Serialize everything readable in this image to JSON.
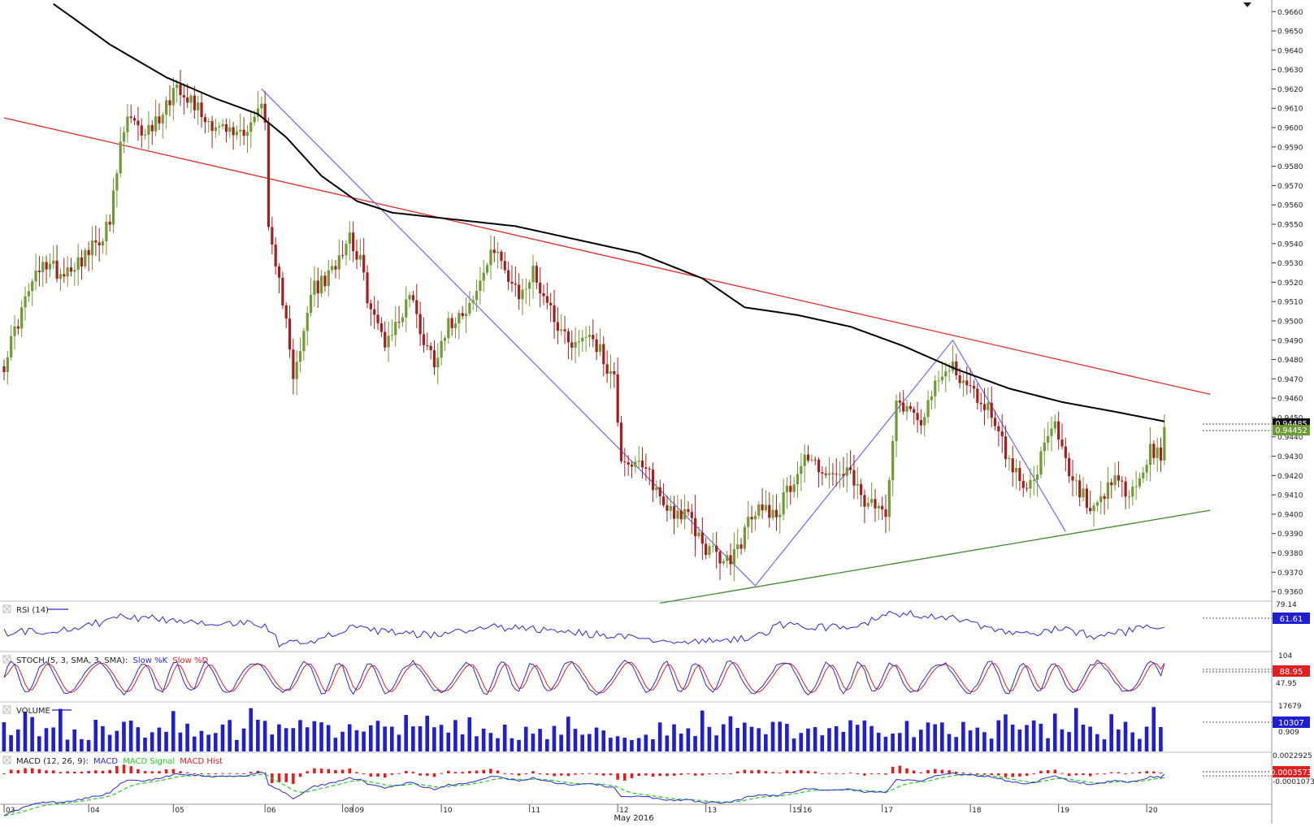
{
  "chart_data": {
    "type": "candlestick",
    "colors": {
      "bull": "#6f9a34",
      "bear": "#a02020",
      "ma": "#000000",
      "resistance": "#e32b2b",
      "support": "#3d8a2a",
      "zigzag": "#6a6aff",
      "rsi": "#2a2ad8",
      "stoch_k": "#2a2ad8",
      "stoch_d": "#e02020",
      "volume": "#1f1fd0",
      "macd": "#2a2ad8",
      "macd_signal": "#22cc22",
      "macd_hist": "#e02020"
    },
    "price_axis": {
      "ymin": 0.9355,
      "ymax": 0.9666,
      "ticks": [
        "0.9660",
        "0.9650",
        "0.9640",
        "0.9630",
        "0.9620",
        "0.9610",
        "0.9600",
        "0.9590",
        "0.9580",
        "0.9570",
        "0.9560",
        "0.9550",
        "0.9540",
        "0.9530",
        "0.9520",
        "0.9510",
        "0.9500",
        "0.9490",
        "0.9480",
        "0.9470",
        "0.9460",
        "0.9450",
        "0.9440",
        "0.9430",
        "0.9420",
        "0.9410",
        "0.9400",
        "0.9390",
        "0.9380",
        "0.9370",
        "0.9360"
      ],
      "last_tag_ma": "0.94485",
      "last_tag_price": "0.94452"
    },
    "x_axis": {
      "days": [
        {
          "label": "03",
          "bar": 0
        },
        {
          "label": "04",
          "bar": 24
        },
        {
          "label": "05",
          "bar": 48
        },
        {
          "label": "06",
          "bar": 74
        },
        {
          "label": "08",
          "bar": 96
        },
        {
          "label": "09",
          "bar": 99
        },
        {
          "label": "10",
          "bar": 124
        },
        {
          "label": "11",
          "bar": 149
        },
        {
          "label": "12",
          "bar": 174
        },
        {
          "label": "13",
          "bar": 199
        },
        {
          "label": "15",
          "bar": 223
        },
        {
          "label": "16",
          "bar": 226
        },
        {
          "label": "17",
          "bar": 249
        },
        {
          "label": "18",
          "bar": 274
        },
        {
          "label": "19",
          "bar": 299
        },
        {
          "label": "20",
          "bar": 324
        }
      ],
      "month_label": "May 2016"
    },
    "price_key_points": [
      [
        0,
        0.9478
      ],
      [
        4,
        0.95
      ],
      [
        8,
        0.952
      ],
      [
        12,
        0.953
      ],
      [
        16,
        0.9525
      ],
      [
        20,
        0.953
      ],
      [
        24,
        0.9535
      ],
      [
        28,
        0.9545
      ],
      [
        30,
        0.955
      ],
      [
        33,
        0.959
      ],
      [
        35,
        0.9605
      ],
      [
        38,
        0.9598
      ],
      [
        42,
        0.96
      ],
      [
        46,
        0.9612
      ],
      [
        49,
        0.9623
      ],
      [
        53,
        0.9615
      ],
      [
        57,
        0.9605
      ],
      [
        61,
        0.96
      ],
      [
        65,
        0.9597
      ],
      [
        69,
        0.96
      ],
      [
        72,
        0.9608
      ],
      [
        73,
        0.9612
      ],
      [
        74,
        0.9607
      ],
      [
        75,
        0.9545
      ],
      [
        77,
        0.9525
      ],
      [
        80,
        0.9505
      ],
      [
        82,
        0.9472
      ],
      [
        84,
        0.9482
      ],
      [
        87,
        0.9515
      ],
      [
        92,
        0.9522
      ],
      [
        95,
        0.9535
      ],
      [
        98,
        0.9545
      ],
      [
        101,
        0.953
      ],
      [
        104,
        0.9505
      ],
      [
        108,
        0.949
      ],
      [
        112,
        0.95
      ],
      [
        115,
        0.9515
      ],
      [
        119,
        0.949
      ],
      [
        122,
        0.948
      ],
      [
        125,
        0.9495
      ],
      [
        129,
        0.9505
      ],
      [
        133,
        0.951
      ],
      [
        136,
        0.9525
      ],
      [
        140,
        0.954
      ],
      [
        143,
        0.952
      ],
      [
        146,
        0.9512
      ],
      [
        150,
        0.9525
      ],
      [
        154,
        0.951
      ],
      [
        158,
        0.9495
      ],
      [
        162,
        0.9488
      ],
      [
        166,
        0.9495
      ],
      [
        170,
        0.948
      ],
      [
        173,
        0.947
      ],
      [
        175,
        0.943
      ],
      [
        179,
        0.9425
      ],
      [
        183,
        0.942
      ],
      [
        187,
        0.9405
      ],
      [
        190,
        0.9402
      ],
      [
        194,
        0.9398
      ],
      [
        198,
        0.9385
      ],
      [
        202,
        0.9378
      ],
      [
        205,
        0.9375
      ],
      [
        208,
        0.9382
      ],
      [
        211,
        0.9395
      ],
      [
        215,
        0.9405
      ],
      [
        219,
        0.94
      ],
      [
        223,
        0.9415
      ],
      [
        227,
        0.943
      ],
      [
        231,
        0.9425
      ],
      [
        235,
        0.9418
      ],
      [
        239,
        0.9422
      ],
      [
        243,
        0.9408
      ],
      [
        247,
        0.9402
      ],
      [
        250,
        0.9403
      ],
      [
        253,
        0.946
      ],
      [
        256,
        0.9455
      ],
      [
        260,
        0.945
      ],
      [
        263,
        0.9462
      ],
      [
        266,
        0.947
      ],
      [
        269,
        0.9478
      ],
      [
        272,
        0.9468
      ],
      [
        275,
        0.9462
      ],
      [
        279,
        0.9455
      ],
      [
        282,
        0.9445
      ],
      [
        285,
        0.9425
      ],
      [
        289,
        0.9418
      ],
      [
        292,
        0.9415
      ],
      [
        295,
        0.9435
      ],
      [
        298,
        0.9445
      ],
      [
        300,
        0.9432
      ],
      [
        303,
        0.9415
      ],
      [
        306,
        0.941
      ],
      [
        308,
        0.9398
      ],
      [
        310,
        0.9402
      ],
      [
        313,
        0.9412
      ],
      [
        316,
        0.9418
      ],
      [
        319,
        0.9408
      ],
      [
        322,
        0.9418
      ],
      [
        325,
        0.9432
      ],
      [
        327,
        0.943
      ],
      [
        328,
        0.9425
      ],
      [
        329,
        0.9445
      ]
    ],
    "ma_points": [
      [
        14,
        0.9664
      ],
      [
        30,
        0.9643
      ],
      [
        46,
        0.9626
      ],
      [
        60,
        0.9615
      ],
      [
        72,
        0.9607
      ],
      [
        80,
        0.9595
      ],
      [
        90,
        0.9575
      ],
      [
        100,
        0.9562
      ],
      [
        110,
        0.9556
      ],
      [
        130,
        0.9552
      ],
      [
        145,
        0.9549
      ],
      [
        160,
        0.9543
      ],
      [
        180,
        0.9535
      ],
      [
        198,
        0.9522
      ],
      [
        210,
        0.9507
      ],
      [
        225,
        0.9503
      ],
      [
        240,
        0.9497
      ],
      [
        255,
        0.9487
      ],
      [
        270,
        0.9475
      ],
      [
        285,
        0.9465
      ],
      [
        300,
        0.9458
      ],
      [
        315,
        0.9453
      ],
      [
        329,
        0.9448
      ]
    ],
    "resistance_line": [
      [
        0,
        0.9605
      ],
      [
        342,
        0.9462
      ]
    ],
    "support_line": [
      [
        186,
        0.9354
      ],
      [
        342,
        0.9402
      ]
    ],
    "zigzag": [
      [
        73,
        0.962
      ],
      [
        213,
        0.9363
      ],
      [
        269,
        0.949
      ],
      [
        301,
        0.9391
      ]
    ],
    "rsi": {
      "label": "RSI (14)",
      "axis_ticks": [
        "79.14"
      ],
      "last": "61.61",
      "key_points": [
        [
          0,
          0.35
        ],
        [
          20,
          0.45
        ],
        [
          34,
          0.72
        ],
        [
          50,
          0.62
        ],
        [
          74,
          0.55
        ],
        [
          78,
          0.12
        ],
        [
          88,
          0.2
        ],
        [
          98,
          0.45
        ],
        [
          120,
          0.3
        ],
        [
          140,
          0.48
        ],
        [
          160,
          0.38
        ],
        [
          180,
          0.2
        ],
        [
          200,
          0.15
        ],
        [
          215,
          0.3
        ],
        [
          220,
          0.55
        ],
        [
          240,
          0.45
        ],
        [
          252,
          0.8
        ],
        [
          268,
          0.72
        ],
        [
          280,
          0.4
        ],
        [
          290,
          0.3
        ],
        [
          300,
          0.45
        ],
        [
          310,
          0.28
        ],
        [
          320,
          0.4
        ],
        [
          329,
          0.52
        ]
      ]
    },
    "stoch": {
      "label": "STOCH (5, 3, SMA, 3, SMA):",
      "legend_k": "Slow %K",
      "legend_d": "Slow %D",
      "axis_ticks": [
        "104",
        "47.95"
      ],
      "last": "88.95"
    },
    "volume": {
      "label": "VOLUME",
      "axis_ticks": [
        "17679",
        "0.909"
      ],
      "last": "10307"
    },
    "macd": {
      "label": "MACD (12, 26, 9):",
      "legend_macd": "MACD",
      "legend_signal": "MACD Signal",
      "legend_hist": "MACD Hist",
      "axis_ticks": [
        "0.0022925",
        "-0.0001073"
      ],
      "last": "0.0003573"
    }
  }
}
